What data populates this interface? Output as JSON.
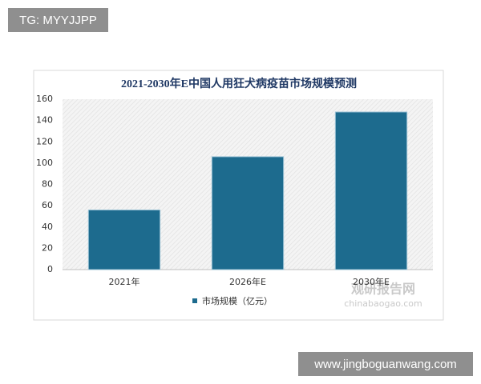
{
  "chart_data": {
    "type": "bar",
    "title": "2021-2030年E中国人用狂犬病疫苗市场规模预测",
    "categories": [
      "2021年",
      "2026年E",
      "2030年E"
    ],
    "series": [
      {
        "name": "市场规模（亿元）",
        "color": "#1d6b8e",
        "values": [
          56,
          106,
          148
        ]
      }
    ],
    "ylim": [
      0,
      160
    ],
    "yticks": [
      0,
      20,
      40,
      60,
      80,
      100,
      120,
      140,
      160
    ],
    "grid": false,
    "legend": "bottom"
  },
  "watermark": {
    "name": "观研报告网",
    "site": "chinabaogao.com"
  },
  "overlays": {
    "top_left": "TG: MYYJJPP",
    "bottom_right": "www.jingboguanwang.com"
  }
}
